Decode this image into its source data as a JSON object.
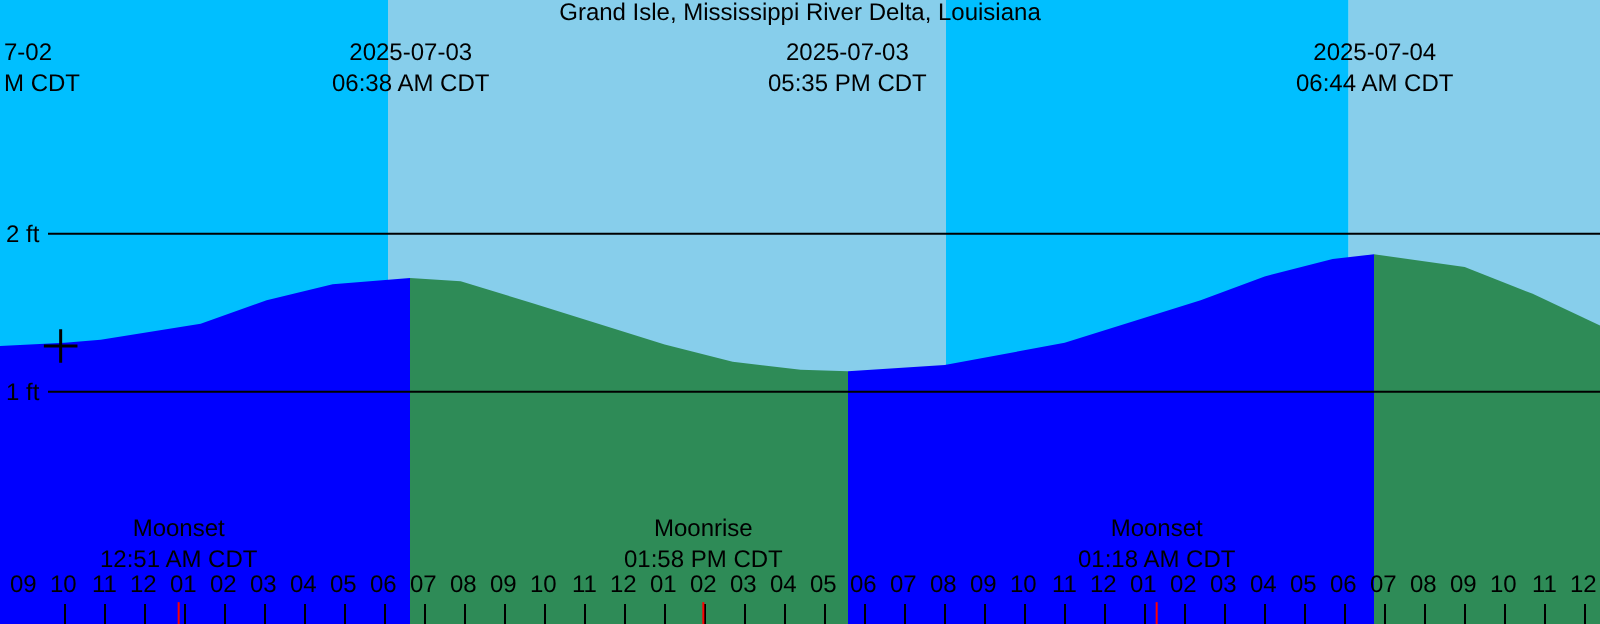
{
  "chart_data": {
    "type": "area",
    "title": "Grand Isle, Mississippi River Delta, Louisiana",
    "xlim": [
      "2025-07-02T20:23",
      "2025-07-04T12:23"
    ],
    "ylim": [
      -0.47,
      3.48
    ],
    "xticks": [
      {
        "value": "2025-07-02T21:00",
        "label": "09"
      },
      {
        "value": "2025-07-02T22:00",
        "label": "10"
      },
      {
        "value": "2025-07-02T23:00",
        "label": "11"
      },
      {
        "value": "2025-07-03T00:00",
        "label": "12"
      },
      {
        "value": "2025-07-03T01:00",
        "label": "01"
      },
      {
        "value": "2025-07-03T02:00",
        "label": "02"
      },
      {
        "value": "2025-07-03T03:00",
        "label": "03"
      },
      {
        "value": "2025-07-03T04:00",
        "label": "04"
      },
      {
        "value": "2025-07-03T05:00",
        "label": "05"
      },
      {
        "value": "2025-07-03T06:00",
        "label": "06"
      },
      {
        "value": "2025-07-03T07:00",
        "label": "07"
      },
      {
        "value": "2025-07-03T08:00",
        "label": "08"
      },
      {
        "value": "2025-07-03T09:00",
        "label": "09"
      },
      {
        "value": "2025-07-03T10:00",
        "label": "10"
      },
      {
        "value": "2025-07-03T11:00",
        "label": "11"
      },
      {
        "value": "2025-07-03T12:00",
        "label": "12"
      },
      {
        "value": "2025-07-03T13:00",
        "label": "01"
      },
      {
        "value": "2025-07-03T14:00",
        "label": "02"
      },
      {
        "value": "2025-07-03T15:00",
        "label": "03"
      },
      {
        "value": "2025-07-03T16:00",
        "label": "04"
      },
      {
        "value": "2025-07-03T17:00",
        "label": "05"
      },
      {
        "value": "2025-07-03T18:00",
        "label": "06"
      },
      {
        "value": "2025-07-03T19:00",
        "label": "07"
      },
      {
        "value": "2025-07-03T20:00",
        "label": "08"
      },
      {
        "value": "2025-07-03T21:00",
        "label": "09"
      },
      {
        "value": "2025-07-03T22:00",
        "label": "10"
      },
      {
        "value": "2025-07-03T23:00",
        "label": "11"
      },
      {
        "value": "2025-07-04T00:00",
        "label": "12"
      },
      {
        "value": "2025-07-04T01:00",
        "label": "01"
      },
      {
        "value": "2025-07-04T02:00",
        "label": "02"
      },
      {
        "value": "2025-07-04T03:00",
        "label": "03"
      },
      {
        "value": "2025-07-04T04:00",
        "label": "04"
      },
      {
        "value": "2025-07-04T05:00",
        "label": "05"
      },
      {
        "value": "2025-07-04T06:00",
        "label": "06"
      },
      {
        "value": "2025-07-04T07:00",
        "label": "07"
      },
      {
        "value": "2025-07-04T08:00",
        "label": "08"
      },
      {
        "value": "2025-07-04T09:00",
        "label": "09"
      },
      {
        "value": "2025-07-04T10:00",
        "label": "10"
      },
      {
        "value": "2025-07-04T11:00",
        "label": "11"
      },
      {
        "value": "2025-07-04T12:00",
        "label": "12"
      }
    ],
    "yticks": [
      {
        "value": 1,
        "label": "1 ft"
      },
      {
        "value": 2,
        "label": "2 ft"
      }
    ],
    "grid": "y",
    "bands": [
      {
        "axis": "x",
        "from": "2025-07-02T20:23",
        "to": "2025-07-03T06:05",
        "label": null,
        "color": "#00bfff"
      },
      {
        "axis": "x",
        "from": "2025-07-03T06:05",
        "to": "2025-07-03T20:02",
        "label": null,
        "color": "#87ceeb"
      },
      {
        "axis": "x",
        "from": "2025-07-03T20:02",
        "to": "2025-07-04T06:06",
        "label": null,
        "color": "#00bfff"
      },
      {
        "axis": "x",
        "from": "2025-07-04T06:06",
        "to": "2025-07-04T12:23",
        "label": null,
        "color": "#87ceeb"
      }
    ],
    "series": [
      {
        "color": "#0000ff",
        "x": [
          "2025-07-02T20:23",
          "2025-07-02T22:00",
          "2025-07-02T22:54",
          "2025-07-03T01:24",
          "2025-07-03T03:03",
          "2025-07-03T04:42",
          "2025-07-03T06:38"
        ],
        "values": [
          1.29,
          1.31,
          1.33,
          1.43,
          1.58,
          1.68,
          1.72
        ]
      },
      {
        "color": "#2e8b57",
        "x": [
          "2025-07-03T06:38",
          "2025-07-03T07:54",
          "2025-07-03T09:42",
          "2025-07-03T13:00",
          "2025-07-03T14:42",
          "2025-07-03T16:24",
          "2025-07-03T17:35"
        ],
        "values": [
          1.72,
          1.7,
          1.56,
          1.3,
          1.19,
          1.14,
          1.13
        ]
      },
      {
        "color": "#0000ff",
        "x": [
          "2025-07-03T17:35",
          "2025-07-03T20:00",
          "2025-07-03T23:00",
          "2025-07-04T02:24",
          "2025-07-04T04:00",
          "2025-07-04T05:42",
          "2025-07-04T06:44"
        ],
        "values": [
          1.13,
          1.17,
          1.31,
          1.58,
          1.73,
          1.84,
          1.87
        ]
      },
      {
        "color": "#2e8b57",
        "x": [
          "2025-07-04T06:44",
          "2025-07-04T09:00",
          "2025-07-04T10:42",
          "2025-07-04T12:23"
        ],
        "values": [
          1.87,
          1.79,
          1.62,
          1.42
        ]
      },
      {
        "type": "scatter",
        "marker": "cross",
        "color": "#000000",
        "x": [
          "2025-07-02T21:54"
        ],
        "values": [
          1.29
        ]
      }
    ],
    "annotations": [
      "7-02\nM CDT",
      "2025-07-03\n06:38 AM CDT",
      "2025-07-03\n05:35 PM CDT",
      "2025-07-04\n06:44 AM CDT",
      {
        "text": "Moonset\n12:51 AM CDT",
        "x": "2025-07-03T00:51",
        "y": -0.47
      },
      {
        "text": "Moonrise\n01:58 PM CDT",
        "x": "2025-07-03T13:58",
        "y": -0.47
      },
      {
        "text": "Moonset\n01:18 AM CDT",
        "x": "2025-07-04T01:18",
        "y": -0.47
      }
    ]
  }
}
